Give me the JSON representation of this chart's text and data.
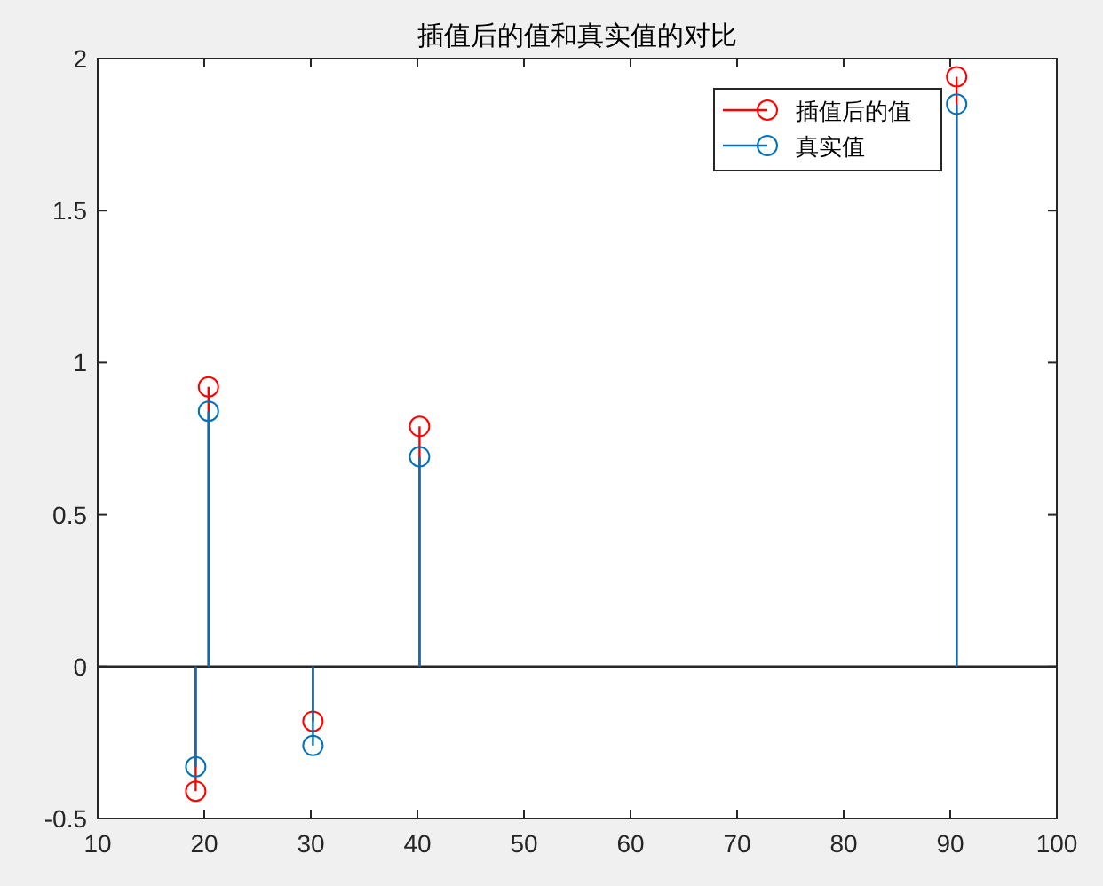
{
  "chart_data": {
    "type": "lollipop",
    "title": "插值后的值和真实值的对比",
    "x": [
      19.2,
      20.4,
      30.2,
      40.2,
      90.6
    ],
    "series": [
      {
        "name": "插值后的值",
        "color": "#ff0000",
        "values": [
          -0.41,
          0.92,
          -0.18,
          0.79,
          1.94
        ]
      },
      {
        "name": "真实值",
        "color": "#0072bd",
        "values": [
          -0.33,
          0.84,
          -0.26,
          0.69,
          1.85
        ]
      }
    ],
    "xlim": [
      10,
      100
    ],
    "ylim": [
      -0.5,
      2
    ],
    "xticks": [
      10,
      20,
      30,
      40,
      50,
      60,
      70,
      80,
      90,
      100
    ],
    "yticks": [
      -0.5,
      0,
      0.5,
      1,
      1.5,
      2
    ],
    "marker": "circle",
    "legend": "top right"
  }
}
